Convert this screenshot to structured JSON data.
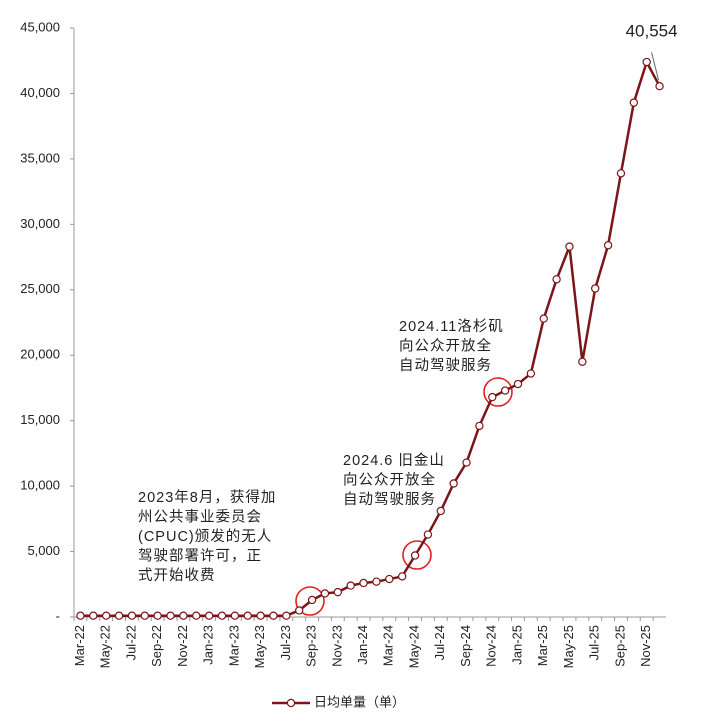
{
  "chart_data": {
    "type": "line",
    "categories": [
      "Mar-22",
      null,
      "May-22",
      null,
      "Jul-22",
      null,
      "Sep-22",
      null,
      "Nov-22",
      null,
      "Jan-23",
      null,
      "Mar-23",
      null,
      "May-23",
      null,
      "Jul-23",
      null,
      "Sep-23",
      null,
      "Nov-23",
      null,
      "Jan-24",
      null,
      "Mar-24",
      null,
      "May-24",
      null,
      "Jul-24",
      null,
      "Sep-24",
      null,
      "Nov-24",
      null,
      "Jan-25",
      null,
      "Mar-25",
      null,
      "May-25",
      null,
      "Jul-25",
      null,
      "Sep-25",
      null,
      "Nov-25",
      null
    ],
    "series": [
      {
        "name": "日均单量（单）",
        "color": "#7b1518",
        "values": [
          100,
          100,
          100,
          100,
          100,
          100,
          100,
          100,
          100,
          100,
          100,
          100,
          100,
          100,
          100,
          100,
          100,
          500,
          1300,
          1800,
          1900,
          2400,
          2600,
          2700,
          2900,
          3100,
          4700,
          6300,
          8100,
          10200,
          11800,
          14600,
          16800,
          17300,
          17800,
          18600,
          22800,
          25800,
          28300,
          19500,
          25100,
          28400,
          33900,
          39300,
          42400,
          40554
        ],
        "value_labels": [
          null,
          null,
          null,
          null,
          null,
          null,
          null,
          null,
          null,
          null,
          null,
          null,
          null,
          null,
          null,
          null,
          null,
          null,
          null,
          null,
          null,
          null,
          null,
          null,
          null,
          null,
          null,
          null,
          null,
          null,
          null,
          null,
          null,
          null,
          null,
          null,
          null,
          null,
          null,
          null,
          null,
          null,
          null,
          null,
          null,
          "40,554"
        ]
      }
    ],
    "ylim": [
      0,
      45000
    ],
    "yticks": [
      {
        "value": 0,
        "label": "-"
      },
      {
        "value": 5000,
        "label": "5,000"
      },
      {
        "value": 10000,
        "label": "10,000"
      },
      {
        "value": 15000,
        "label": "15,000"
      },
      {
        "value": 20000,
        "label": "20,000"
      },
      {
        "value": 25000,
        "label": "25,000"
      },
      {
        "value": 30000,
        "label": "30,000"
      },
      {
        "value": 35000,
        "label": "35,000"
      },
      {
        "value": 40000,
        "label": "40,000"
      },
      {
        "value": 45000,
        "label": "45,000"
      }
    ],
    "annotations": [
      [
        "2023年8月，获得加",
        "州公共事业委员会",
        "(CPUC)颁发的无人",
        "驾驶部署许可，正",
        "式开始收费"
      ],
      [
        "2024.6 旧金山",
        "向公众开放全",
        "自动驾驶服务"
      ],
      [
        "2024.11洛杉矶",
        "向公众开放全",
        "自动驾驶服务"
      ]
    ]
  }
}
